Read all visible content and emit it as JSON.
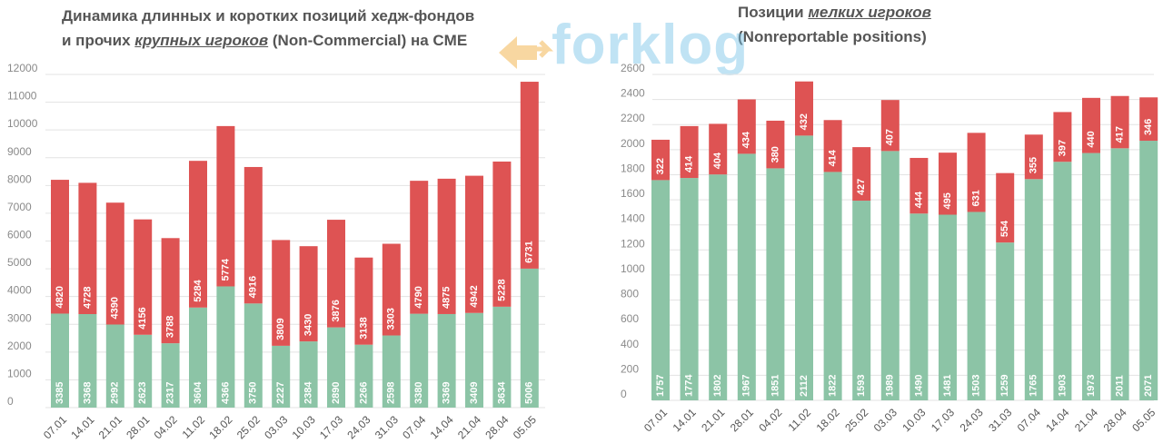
{
  "logo": {
    "text": "forklog",
    "arrow_color": "#f0a830",
    "text_color": "#74c3e8"
  },
  "colors": {
    "long": "#8cc4a6",
    "short": "#de5353",
    "grid": "#e3e3e3",
    "axis_text": "#8a8a8a"
  },
  "chart_data": [
    {
      "type": "bar",
      "stacked": true,
      "title_parts": {
        "line1": "Динамика длинных и коротких позиций хедж-фондов",
        "line2_pre": "и прочих ",
        "line2_em": "крупных игроков",
        "line2_post": " (Non-Commercial) на CME"
      },
      "categories": [
        "07.01",
        "14.01",
        "21.01",
        "28.01",
        "04.02",
        "11.02",
        "18.02",
        "25.02",
        "03.03",
        "10.03",
        "17.03",
        "24.03",
        "31.03",
        "07.04",
        "14.04",
        "21.04",
        "28.04",
        "05.05"
      ],
      "series": [
        {
          "color": "#8cc4a6",
          "values": [
            3385,
            3368,
            2992,
            2623,
            2317,
            3604,
            4366,
            3750,
            2227,
            2384,
            2890,
            2266,
            2598,
            3380,
            3369,
            3409,
            3634,
            5006
          ]
        },
        {
          "color": "#de5353",
          "values": [
            4820,
            4728,
            4390,
            4156,
            3788,
            5284,
            5774,
            4916,
            3809,
            3430,
            3876,
            3138,
            3303,
            4790,
            4875,
            4942,
            5228,
            6731
          ]
        }
      ],
      "yticks": [
        0,
        1000,
        2000,
        3000,
        4000,
        5000,
        6000,
        7000,
        8000,
        9000,
        10000,
        11000,
        12000
      ],
      "ylim": [
        0,
        12000
      ],
      "grid": true,
      "data_labels": true
    },
    {
      "type": "bar",
      "stacked": true,
      "title_parts": {
        "line1_pre": "Позиции ",
        "line1_em": "мелких игроков",
        "line2": "(Nonreportable positions)"
      },
      "categories": [
        "07.01",
        "14.01",
        "21.01",
        "28.01",
        "04.02",
        "11.02",
        "18.02",
        "25.02",
        "03.03",
        "10.03",
        "17.03",
        "24.03",
        "31.03",
        "07.04",
        "14.04",
        "21.04",
        "28.04",
        "05.05"
      ],
      "series": [
        {
          "color": "#8cc4a6",
          "values": [
            1757,
            1774,
            1802,
            1967,
            1851,
            2112,
            1822,
            1593,
            1989,
            1490,
            1481,
            1503,
            1259,
            1765,
            1903,
            1973,
            2011,
            2071
          ]
        },
        {
          "color": "#de5353",
          "values": [
            322,
            414,
            404,
            434,
            380,
            432,
            414,
            427,
            407,
            444,
            495,
            631,
            554,
            355,
            397,
            440,
            417,
            346
          ]
        }
      ],
      "yticks": [
        0,
        200,
        400,
        600,
        800,
        1000,
        1200,
        1400,
        1600,
        1800,
        2000,
        2200,
        2400,
        2600
      ],
      "ylim": [
        0,
        2600
      ],
      "grid": true,
      "data_labels": true
    }
  ]
}
